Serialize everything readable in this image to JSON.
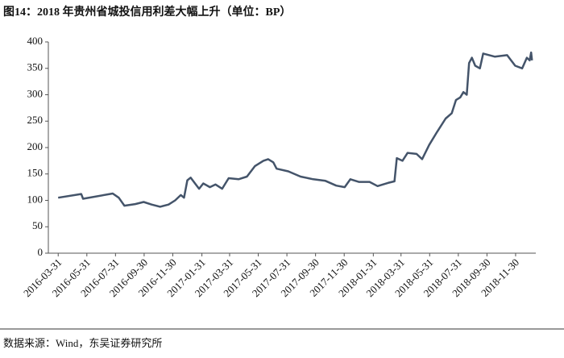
{
  "chart_data": {
    "type": "line",
    "title": "图14：2018 年贵州省城投信用利差大幅上升（单位：BP）",
    "source": "数据来源：Wind，东吴证券研究所",
    "color": "#44546a",
    "x": [
      "2016-03-31",
      "2016-05-19",
      "2016-05-23",
      "2016-07-25",
      "2016-08-07",
      "2016-08-19",
      "2016-09-11",
      "2016-09-29",
      "2016-10-16",
      "2016-11-03",
      "2016-11-21",
      "2016-12-05",
      "2016-12-17",
      "2016-12-24",
      "2016-12-31",
      "2017-01-07",
      "2017-01-18",
      "2017-01-25",
      "2017-02-03",
      "2017-02-17",
      "2017-03-01",
      "2017-03-15",
      "2017-03-29",
      "2017-04-19",
      "2017-05-07",
      "2017-05-24",
      "2017-06-11",
      "2017-06-21",
      "2017-07-02",
      "2017-07-09",
      "2017-08-03",
      "2017-08-29",
      "2017-09-25",
      "2017-10-21",
      "2017-11-13",
      "2017-12-01",
      "2017-12-13",
      "2017-12-31",
      "2018-01-23",
      "2018-02-09",
      "2018-03-03",
      "2018-03-17",
      "2018-03-22",
      "2018-04-03",
      "2018-04-14",
      "2018-05-03",
      "2018-05-15",
      "2018-05-30",
      "2018-06-16",
      "2018-07-04",
      "2018-07-17",
      "2018-07-26",
      "2018-08-04",
      "2018-08-11",
      "2018-08-18",
      "2018-08-23",
      "2018-08-29",
      "2018-09-05",
      "2018-09-15",
      "2018-09-22",
      "2018-10-17",
      "2018-11-12",
      "2018-11-29",
      "2018-12-14",
      "2018-12-24",
      "2018-12-30",
      "2019-01-02",
      "2019-01-04"
    ],
    "values": [
      105,
      112,
      103,
      113,
      105,
      90,
      93,
      97,
      92,
      88,
      92,
      100,
      110,
      105,
      138,
      143,
      130,
      122,
      132,
      125,
      130,
      122,
      142,
      140,
      145,
      165,
      175,
      178,
      172,
      160,
      155,
      145,
      140,
      137,
      128,
      125,
      140,
      135,
      135,
      127,
      133,
      136,
      180,
      175,
      190,
      188,
      178,
      205,
      230,
      255,
      265,
      290,
      295,
      305,
      300,
      360,
      370,
      355,
      350,
      378,
      372,
      375,
      355,
      350,
      370,
      365,
      380,
      365
    ],
    "xlim": [
      "2016-03-10",
      "2019-01-12"
    ],
    "xticks": [
      "2016-03-31",
      "2016-05-31",
      "2016-07-31",
      "2016-09-30",
      "2016-11-30",
      "2017-01-31",
      "2017-03-31",
      "2017-05-31",
      "2017-07-31",
      "2017-09-30",
      "2017-11-30",
      "2018-01-31",
      "2018-03-31",
      "2018-05-31",
      "2018-07-31",
      "2018-09-30",
      "2018-11-30"
    ],
    "ylim": [
      0,
      400
    ],
    "yticks": [
      0,
      50,
      100,
      150,
      200,
      250,
      300,
      350,
      400
    ],
    "grid": false
  }
}
